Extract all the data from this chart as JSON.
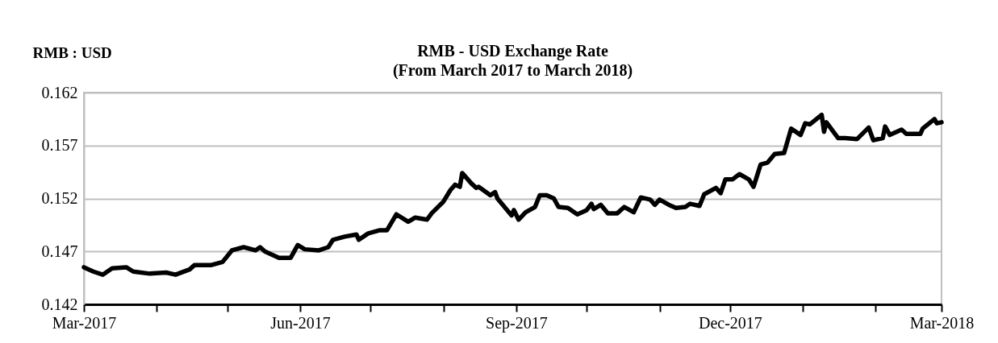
{
  "chart_data": {
    "type": "line",
    "title": "RMB - USD Exchange Rate",
    "subtitle": "(From March 2017 to March 2018)",
    "ylabel": "RMB : USD",
    "x": [
      "2017-03-01",
      "2017-03-05",
      "2017-03-09",
      "2017-03-13",
      "2017-03-19",
      "2017-03-22",
      "2017-03-29",
      "2017-04-05",
      "2017-04-09",
      "2017-04-15",
      "2017-04-17",
      "2017-04-24",
      "2017-04-29",
      "2017-05-03",
      "2017-05-08",
      "2017-05-13",
      "2017-05-15",
      "2017-05-17",
      "2017-05-23",
      "2017-05-28",
      "2017-05-31",
      "2017-06-03",
      "2017-06-09",
      "2017-06-13",
      "2017-06-15",
      "2017-06-20",
      "2017-06-25",
      "2017-06-26",
      "2017-06-30",
      "2017-07-05",
      "2017-07-08",
      "2017-07-12",
      "2017-07-17",
      "2017-07-20",
      "2017-07-25",
      "2017-07-27",
      "2017-08-01",
      "2017-08-04",
      "2017-08-06",
      "2017-08-08",
      "2017-08-09",
      "2017-08-13",
      "2017-08-15",
      "2017-08-16",
      "2017-08-21",
      "2017-08-23",
      "2017-08-24",
      "2017-08-30",
      "2017-08-31",
      "2017-09-02",
      "2017-09-05",
      "2017-09-09",
      "2017-09-11",
      "2017-09-14",
      "2017-09-17",
      "2017-09-19",
      "2017-09-23",
      "2017-09-27",
      "2017-10-01",
      "2017-10-03",
      "2017-10-04",
      "2017-10-07",
      "2017-10-10",
      "2017-10-14",
      "2017-10-17",
      "2017-10-21",
      "2017-10-24",
      "2017-10-28",
      "2017-10-30",
      "2017-11-01",
      "2017-11-05",
      "2017-11-08",
      "2017-11-12",
      "2017-11-14",
      "2017-11-18",
      "2017-11-20",
      "2017-11-25",
      "2017-11-27",
      "2017-11-29",
      "2017-12-02",
      "2017-12-05",
      "2017-12-09",
      "2017-12-11",
      "2017-12-12",
      "2017-12-14",
      "2017-12-17",
      "2017-12-20",
      "2017-12-24",
      "2017-12-27",
      "2017-12-31",
      "2018-01-02",
      "2018-01-04",
      "2018-01-09",
      "2018-01-10",
      "2018-01-11",
      "2018-01-16",
      "2018-01-19",
      "2018-01-24",
      "2018-01-29",
      "2018-01-31",
      "2018-02-04",
      "2018-02-05",
      "2018-02-07",
      "2018-02-12",
      "2018-02-14",
      "2018-02-20",
      "2018-02-21",
      "2018-02-26",
      "2018-02-27",
      "2018-03-01"
    ],
    "series": [
      {
        "color": "#000000",
        "values": [
          0.1455,
          0.1451,
          0.1448,
          0.1454,
          0.1455,
          0.1451,
          0.1449,
          0.145,
          0.1448,
          0.1453,
          0.1457,
          0.1457,
          0.146,
          0.1471,
          0.1474,
          0.1471,
          0.1474,
          0.147,
          0.1464,
          0.1464,
          0.1476,
          0.1472,
          0.1471,
          0.1474,
          0.1481,
          0.1484,
          0.1486,
          0.1481,
          0.1487,
          0.149,
          0.149,
          0.1505,
          0.1498,
          0.1502,
          0.15,
          0.1506,
          0.1517,
          0.1528,
          0.1533,
          0.1531,
          0.1544,
          0.1534,
          0.153,
          0.1531,
          0.1523,
          0.1526,
          0.152,
          0.1504,
          0.1509,
          0.15,
          0.1507,
          0.1512,
          0.1523,
          0.1523,
          0.152,
          0.1512,
          0.1511,
          0.1505,
          0.1509,
          0.1515,
          0.151,
          0.1514,
          0.1506,
          0.1506,
          0.1512,
          0.1507,
          0.1521,
          0.1519,
          0.1514,
          0.1519,
          0.1514,
          0.1511,
          0.1512,
          0.1515,
          0.1513,
          0.1524,
          0.153,
          0.1525,
          0.1538,
          0.1538,
          0.1543,
          0.1538,
          0.1531,
          0.1538,
          0.1552,
          0.1554,
          0.1562,
          0.1563,
          0.1586,
          0.158,
          0.1591,
          0.159,
          0.1599,
          0.1583,
          0.1592,
          0.1577,
          0.1577,
          0.1576,
          0.1587,
          0.1575,
          0.1577,
          0.1588,
          0.158,
          0.1585,
          0.1581,
          0.1581,
          0.1586,
          0.1595,
          0.1591,
          0.1592
        ]
      }
    ],
    "xlim": [
      "2017-03-01",
      "2018-03-01"
    ],
    "xticks": [
      {
        "value": "2017-03-01",
        "label": "Mar-2017"
      },
      {
        "value": "2017-04-01",
        "label": null
      },
      {
        "value": "2017-05-01",
        "label": null
      },
      {
        "value": "2017-06-01",
        "label": "Jun-2017"
      },
      {
        "value": "2017-07-01",
        "label": null
      },
      {
        "value": "2017-08-01",
        "label": null
      },
      {
        "value": "2017-09-01",
        "label": "Sep-2017"
      },
      {
        "value": "2017-10-01",
        "label": null
      },
      {
        "value": "2017-11-01",
        "label": null
      },
      {
        "value": "2017-12-01",
        "label": "Dec-2017"
      },
      {
        "value": "2018-01-01",
        "label": null
      },
      {
        "value": "2018-02-01",
        "label": null
      },
      {
        "value": "2018-03-01",
        "label": "Mar-2018"
      }
    ],
    "ylim": [
      0.142,
      0.162
    ],
    "yticks": [
      0.142,
      0.147,
      0.152,
      0.157,
      0.162
    ],
    "grid": "y",
    "marker": "none",
    "line_style": "solid"
  }
}
